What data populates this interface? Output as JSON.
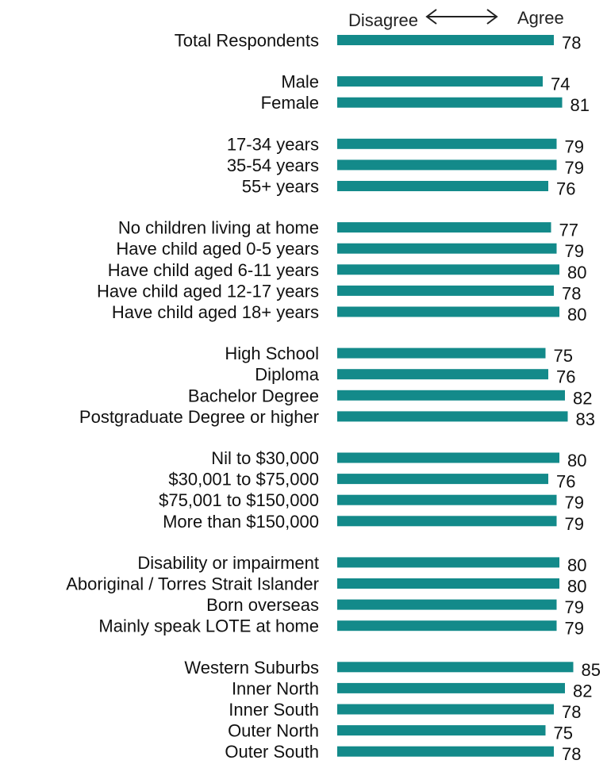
{
  "chart_data": {
    "type": "bar",
    "orientation": "horizontal",
    "scale_labels": {
      "left": "Disagree",
      "right": "Agree"
    },
    "bar_color": "#138a8a",
    "groups": [
      {
        "rows": [
          {
            "label": "Total Respondents",
            "value": 78
          }
        ]
      },
      {
        "rows": [
          {
            "label": "Male",
            "value": 74
          },
          {
            "label": "Female",
            "value": 81
          }
        ]
      },
      {
        "rows": [
          {
            "label": "17-34 years",
            "value": 79
          },
          {
            "label": "35-54 years",
            "value": 79
          },
          {
            "label": "55+ years",
            "value": 76
          }
        ]
      },
      {
        "rows": [
          {
            "label": "No children living at home",
            "value": 77
          },
          {
            "label": "Have child aged 0-5 years",
            "value": 79
          },
          {
            "label": "Have child aged 6-11 years",
            "value": 80
          },
          {
            "label": "Have child aged 12-17 years",
            "value": 78
          },
          {
            "label": "Have child aged 18+ years",
            "value": 80
          }
        ]
      },
      {
        "rows": [
          {
            "label": "High School",
            "value": 75
          },
          {
            "label": "Diploma",
            "value": 76
          },
          {
            "label": "Bachelor Degree",
            "value": 82
          },
          {
            "label": "Postgraduate Degree or higher",
            "value": 83
          }
        ]
      },
      {
        "rows": [
          {
            "label": "Nil to $30,000",
            "value": 80
          },
          {
            "label": "$30,001 to $75,000",
            "value": 76
          },
          {
            "label": "$75,001 to $150,000",
            "value": 79
          },
          {
            "label": "More than $150,000",
            "value": 79
          }
        ]
      },
      {
        "rows": [
          {
            "label": "Disability or impairment",
            "value": 80
          },
          {
            "label": "Aboriginal / Torres Strait Islander",
            "value": 80
          },
          {
            "label": "Born overseas",
            "value": 79
          },
          {
            "label": "Mainly speak LOTE at home",
            "value": 79
          }
        ]
      },
      {
        "rows": [
          {
            "label": "Western Suburbs",
            "value": 85
          },
          {
            "label": "Inner North",
            "value": 82
          },
          {
            "label": "Inner South",
            "value": 78
          },
          {
            "label": "Outer North",
            "value": 75
          },
          {
            "label": "Outer South",
            "value": 78
          }
        ]
      }
    ]
  }
}
